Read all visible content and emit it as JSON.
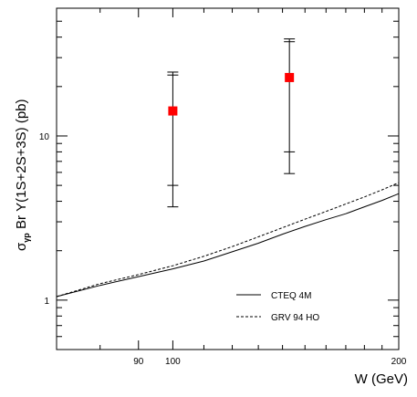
{
  "chart_data": {
    "type": "scatter",
    "title": "",
    "xlabel": "W (GeV)",
    "ylabel": "σγp Br Υ(1S+2S+3S) (pb)",
    "ylabel_parts": {
      "sigma": "σ",
      "subscript": "γp",
      "rest": " Br Υ(1S+2S+3S) (pb)"
    },
    "x_scale": "log",
    "y_scale": "log",
    "xlim": [
      70,
      200
    ],
    "ylim": [
      0.5,
      60
    ],
    "x_ticks": [
      {
        "value": 90,
        "label": "90"
      },
      {
        "value": 100,
        "label": "100"
      },
      {
        "value": 200,
        "label": "200"
      }
    ],
    "y_ticks": [
      {
        "value": 1,
        "label": "1"
      },
      {
        "value": 10,
        "label": "10"
      }
    ],
    "grid": false,
    "legend_position": "bottom-right",
    "points": [
      {
        "x": 100,
        "y": 14.2,
        "stat_err": [
          5.0,
          23.5
        ],
        "tot_err": [
          3.7,
          24.5
        ],
        "color": "#ff0000"
      },
      {
        "x": 143,
        "y": 22.7,
        "stat_err": [
          8.0,
          37.5
        ],
        "tot_err": [
          5.9,
          39.0
        ],
        "color": "#ff0000"
      }
    ],
    "series": [
      {
        "name": "CTEQ 4M",
        "style": "solid",
        "x": [
          70,
          80,
          90,
          100,
          110,
          120,
          130,
          140,
          150,
          160,
          170,
          180,
          190,
          200
        ],
        "y": [
          1.05,
          1.23,
          1.39,
          1.55,
          1.73,
          1.97,
          2.22,
          2.52,
          2.81,
          3.09,
          3.36,
          3.7,
          4.05,
          4.45
        ]
      },
      {
        "name": "GRV 94 HO",
        "style": "dashed",
        "x": [
          70,
          80,
          90,
          100,
          110,
          120,
          130,
          140,
          150,
          160,
          170,
          180,
          190,
          200
        ],
        "y": [
          1.05,
          1.26,
          1.43,
          1.62,
          1.85,
          2.12,
          2.43,
          2.76,
          3.11,
          3.47,
          3.85,
          4.25,
          4.7,
          5.2
        ]
      }
    ]
  }
}
